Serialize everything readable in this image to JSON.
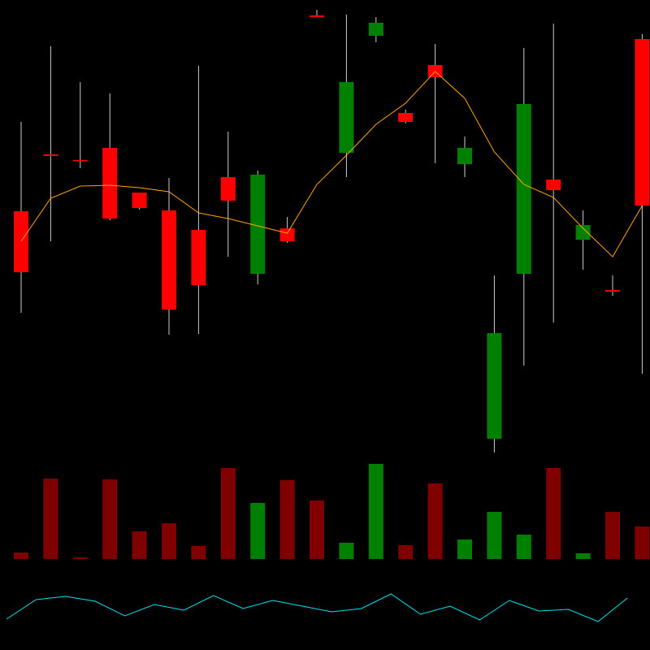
{
  "chart_data": {
    "type": "candlestick",
    "up_color": "#008000",
    "down_color": "#ff0000",
    "volume_up_color": "#008000",
    "volume_down_color": "#800000",
    "wick_color": "#cccccc",
    "ylim": [
      40,
      600
    ],
    "open": [
      340,
      410,
      403,
      418,
      363,
      341,
      317,
      382,
      263,
      319,
      581,
      412,
      556,
      461,
      520,
      398,
      60,
      263,
      379,
      305,
      243,
      552
    ],
    "close": [
      265,
      408,
      402,
      331,
      344,
      219,
      249,
      353,
      385,
      303,
      579,
      499,
      572,
      450,
      505,
      418,
      190,
      472,
      366,
      323,
      241,
      347
    ],
    "high": [
      450,
      543,
      499,
      485,
      363,
      381,
      519,
      438,
      390,
      333,
      588,
      582,
      579,
      465,
      546,
      432,
      261,
      541,
      571,
      341,
      261,
      558
    ],
    "low": [
      215,
      303,
      393,
      329,
      342,
      188,
      189,
      284,
      250,
      301,
      579,
      382,
      548,
      448,
      399,
      382,
      43,
      150,
      203,
      268,
      236,
      140
    ],
    "ma": {
      "color": "#ffa500",
      "values": [
        303,
        356,
        371,
        372,
        369,
        364,
        338,
        331,
        322,
        313,
        373,
        409,
        447,
        473,
        512,
        479,
        413,
        373,
        357,
        319,
        284,
        347
      ]
    },
    "volume": {
      "ylim": [
        0,
        130
      ],
      "values": [
        8,
        99,
        2,
        98,
        34,
        44,
        16,
        112,
        69,
        97,
        72,
        20,
        117,
        17,
        93,
        24,
        58,
        30,
        112,
        7,
        58,
        40
      ]
    },
    "indicator": {
      "color": "#00e5ee",
      "ylim": [
        30,
        90
      ],
      "values": [
        38,
        62,
        66,
        60,
        42,
        56,
        49,
        67,
        51,
        61,
        54,
        47,
        51,
        69,
        44,
        54,
        37,
        61,
        48,
        50,
        35,
        64
      ]
    }
  }
}
